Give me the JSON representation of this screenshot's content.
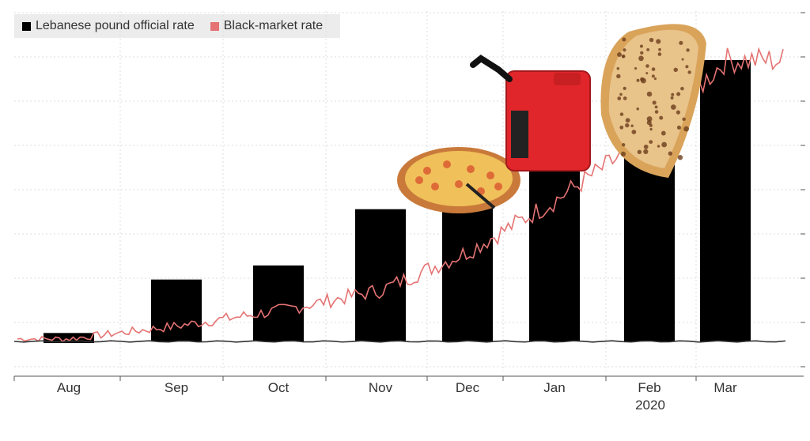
{
  "chart_data": {
    "type": "bar",
    "categories": [
      "Aug",
      "Sep",
      "Oct",
      "Nov",
      "Dec",
      "Jan",
      "Feb",
      "Mar"
    ],
    "year_label": "2020",
    "series": [
      {
        "name": "Lebanese pound official rate",
        "color": "#000000",
        "values": [
          1507,
          1507,
          1507,
          1507,
          1507,
          1507,
          1507,
          1507
        ]
      },
      {
        "name": "Black-market rate",
        "color": "#e57373",
        "values": [
          1510,
          1560,
          1620,
          1700,
          1850,
          2050,
          2300,
          2600
        ]
      }
    ],
    "overlay_bar_heights_relative": [
      0.03,
      0.22,
      0.27,
      0.47,
      0.58,
      0.82,
      0.88,
      1.0
    ],
    "grid": true,
    "legend_position": "top-left",
    "decorations": [
      "pizza-image",
      "gas-can-image",
      "flatbread-image"
    ]
  }
}
